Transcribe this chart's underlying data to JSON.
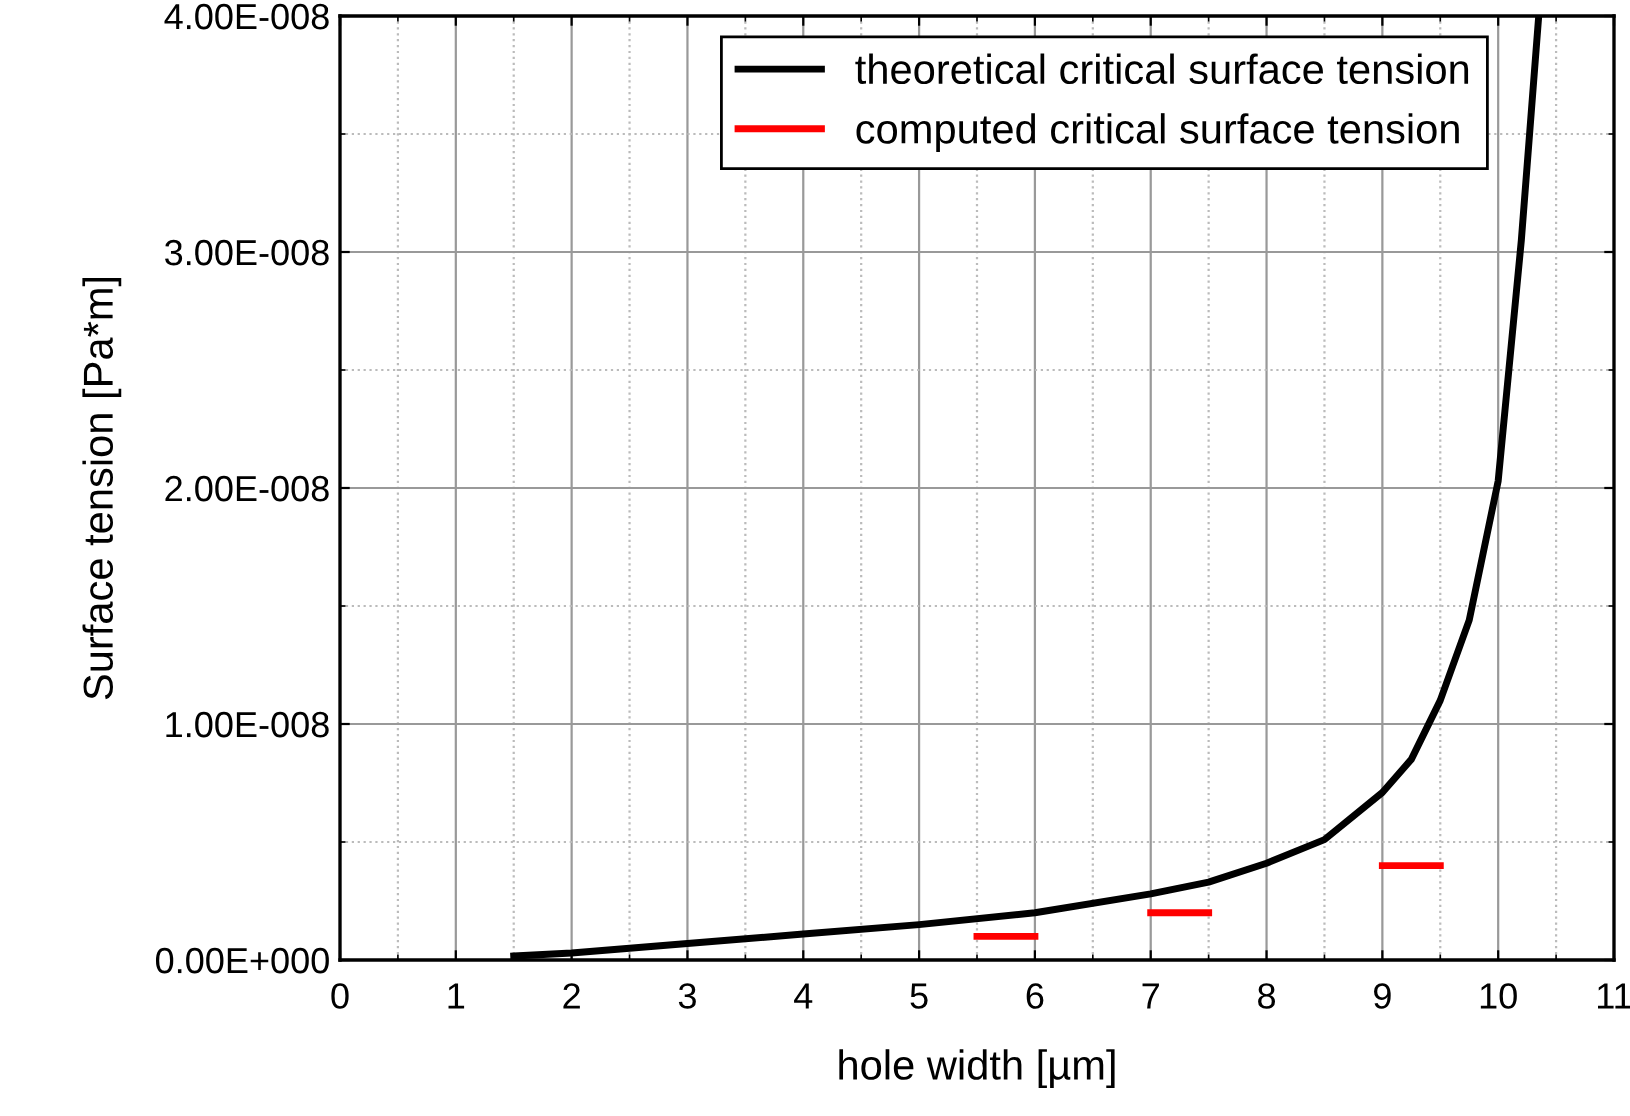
{
  "chart_data": {
    "type": "line",
    "xlabel": "hole width [µm]",
    "ylabel": "Surface tension [Pa*m]",
    "xlim": [
      0,
      11
    ],
    "xticks": [
      0,
      1,
      2,
      3,
      4,
      5,
      6,
      7,
      8,
      9,
      10,
      11
    ],
    "ylim": [
      0,
      4e-08
    ],
    "yticks": [
      {
        "value": 0,
        "label": "0.00E+000"
      },
      {
        "value": 1e-08,
        "label": "1.00E-008"
      },
      {
        "value": 2e-08,
        "label": "2.00E-008"
      },
      {
        "value": 3e-08,
        "label": "3.00E-008"
      },
      {
        "value": 4e-08,
        "label": "4.00E-008"
      }
    ],
    "grid": true,
    "legend": "top",
    "line_style": "solid",
    "marker": "none",
    "series": [
      {
        "name": "theoretical critical surface tension",
        "color": "#000000",
        "x": [
          1.5,
          2,
          3,
          4,
          5,
          6,
          7,
          7.5,
          8,
          8.5,
          9,
          9.25,
          9.5,
          9.75,
          10,
          10.2,
          10.35
        ],
        "values": [
          1.7e-10,
          3e-10,
          7e-10,
          1.1e-09,
          1.5e-09,
          2e-09,
          2.8e-09,
          3.3e-09,
          4.1e-09,
          5.1e-09,
          7.1e-09,
          8.5e-09,
          1.1e-08,
          1.44e-08,
          2.03e-08,
          3.05e-08,
          4e-08
        ]
      },
      {
        "name": "computed critical surface tension",
        "color": "#ff0000",
        "x": [
          5.5,
          6,
          6.5,
          7,
          7.5,
          8,
          9,
          9.5
        ],
        "values": [
          1e-09,
          1e-09,
          null,
          2e-09,
          2e-09,
          null,
          4e-09,
          4e-09
        ]
      }
    ]
  }
}
